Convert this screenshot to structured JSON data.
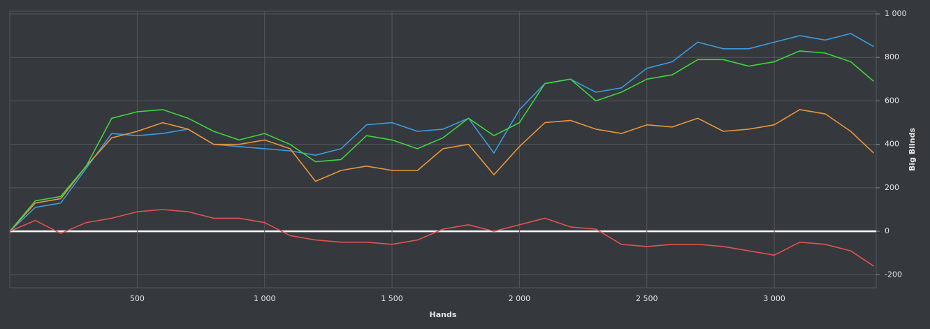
{
  "chart_data": {
    "type": "line",
    "xlabel": "Hands",
    "ylabel": "Big Blinds",
    "xlim": [
      0,
      3400
    ],
    "ylim": [
      -260,
      1000
    ],
    "xticks": [
      500,
      {
        "value": 1000,
        "label": "1 000"
      },
      {
        "value": 1500,
        "label": "1 500"
      },
      {
        "value": 2000,
        "label": "2 000"
      },
      {
        "value": 2500,
        "label": "2 500"
      },
      {
        "value": 3000,
        "label": "3 000"
      }
    ],
    "yticks": [
      -200,
      0,
      200,
      400,
      600,
      800,
      {
        "value": 1000,
        "label": "1 000"
      }
    ],
    "grid": true,
    "x": [
      0,
      100,
      200,
      300,
      400,
      500,
      600,
      700,
      800,
      900,
      1000,
      1100,
      1200,
      1300,
      1400,
      1500,
      1600,
      1700,
      1800,
      1900,
      2000,
      2100,
      2200,
      2300,
      2400,
      2500,
      2600,
      2700,
      2800,
      2900,
      3000,
      3100,
      3200,
      3300,
      3390
    ],
    "series": [
      {
        "color": "#3d9be0",
        "values": [
          0,
          110,
          130,
          290,
          450,
          440,
          450,
          470,
          400,
          390,
          380,
          370,
          350,
          380,
          490,
          500,
          460,
          470,
          520,
          360,
          560,
          680,
          700,
          640,
          660,
          750,
          780,
          870,
          840,
          840,
          870,
          900,
          880,
          910,
          850
        ]
      },
      {
        "color": "#e8963a",
        "values": [
          0,
          130,
          150,
          300,
          430,
          460,
          500,
          470,
          400,
          400,
          420,
          380,
          230,
          280,
          300,
          280,
          280,
          380,
          400,
          260,
          390,
          500,
          510,
          470,
          450,
          490,
          480,
          520,
          460,
          470,
          490,
          560,
          540,
          460,
          360
        ]
      },
      {
        "color": "#3fd43f",
        "values": [
          0,
          140,
          160,
          300,
          520,
          550,
          560,
          520,
          460,
          420,
          450,
          400,
          320,
          330,
          440,
          420,
          380,
          430,
          520,
          440,
          500,
          680,
          700,
          600,
          640,
          700,
          720,
          790,
          790,
          760,
          780,
          830,
          820,
          780,
          690
        ]
      },
      {
        "color": "#e05252",
        "values": [
          0,
          50,
          -10,
          40,
          60,
          90,
          100,
          90,
          60,
          60,
          40,
          -20,
          -40,
          -50,
          -50,
          -60,
          -40,
          10,
          30,
          0,
          30,
          60,
          20,
          10,
          -60,
          -70,
          -60,
          -60,
          -70,
          -90,
          -110,
          -50,
          -60,
          -90,
          -160
        ]
      }
    ]
  }
}
